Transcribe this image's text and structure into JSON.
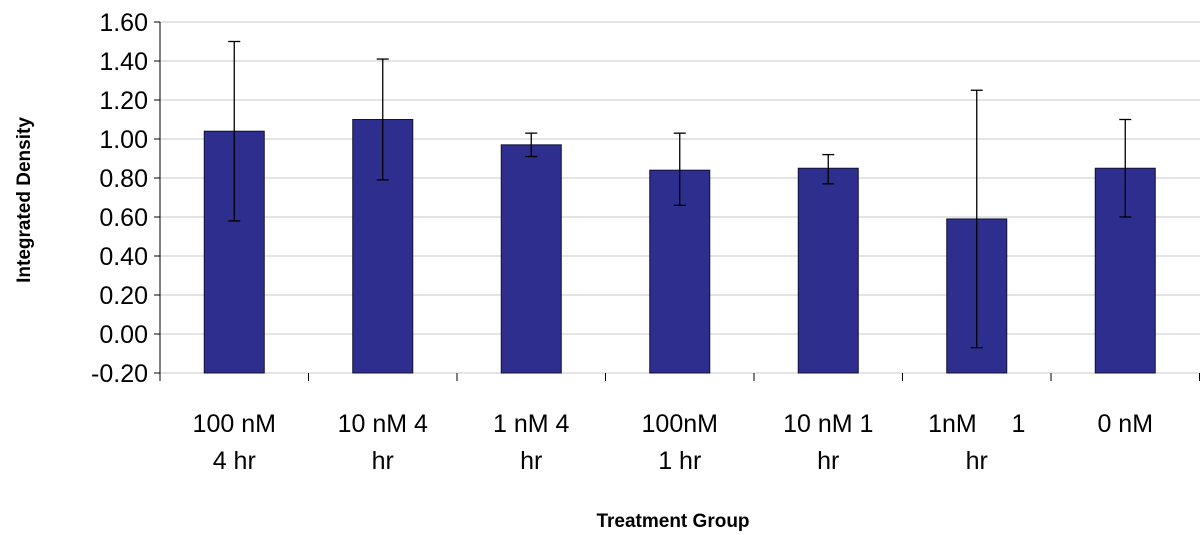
{
  "chart_data": {
    "type": "bar",
    "title": "",
    "xlabel": "Treatment Group",
    "ylabel": "Integrated Density",
    "ylim": [
      -0.2,
      1.6
    ],
    "yticks": [
      "1.60",
      "1.40",
      "1.20",
      "1.00",
      "0.80",
      "0.60",
      "0.40",
      "0.20",
      "0.00",
      "-0.20"
    ],
    "ytick_values": [
      1.6,
      1.4,
      1.2,
      1.0,
      0.8,
      0.6,
      0.4,
      0.2,
      0.0,
      -0.2
    ],
    "categories": [
      [
        "100 nM",
        "4 hr"
      ],
      [
        "10 nM 4",
        "hr"
      ],
      [
        "1 nM 4",
        "hr"
      ],
      [
        "100nM",
        "1 hr"
      ],
      [
        "10 nM 1",
        "hr"
      ],
      [
        "1nM     1",
        "hr"
      ],
      [
        "0 nM"
      ]
    ],
    "values": [
      1.04,
      1.1,
      0.97,
      0.84,
      0.85,
      0.59,
      0.85
    ],
    "error_upper": [
      1.5,
      1.41,
      1.03,
      1.03,
      0.92,
      1.25,
      1.1
    ],
    "error_lower": [
      0.58,
      0.79,
      0.91,
      0.66,
      0.77,
      -0.07,
      0.6
    ],
    "bar_color": "#2e2e8f",
    "grid": true,
    "legend": "none"
  }
}
